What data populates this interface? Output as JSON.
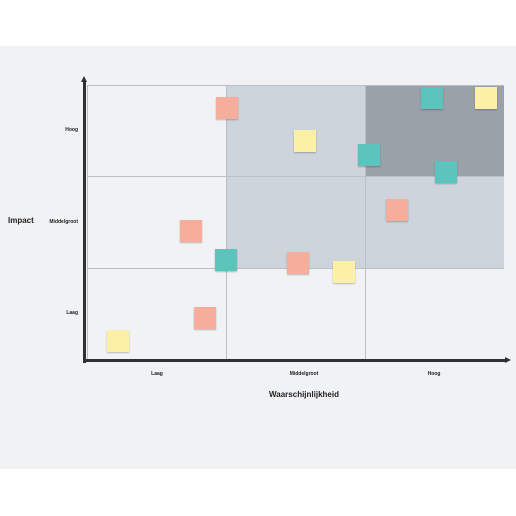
{
  "colors": {
    "board_background": "#f1f2f4",
    "zone_low": "#f1f2f4",
    "zone_medium": "#ced4dc",
    "zone_high": "#9ba1a9",
    "axis": "#2f3033",
    "note_salmon": "#f6ad9c",
    "note_teal": "#5cc4bd",
    "note_yellow": "#fcefa6"
  },
  "axes": {
    "x_title": "Waarschijnlijkheid",
    "y_title": "Impact",
    "x_ticks": [
      "Laag",
      "Middelgroot",
      "Hoog"
    ],
    "y_ticks": [
      "Hoog",
      "Middelgroot",
      "Laag"
    ]
  },
  "zones": [
    [
      "low",
      "medium",
      "high"
    ],
    [
      "low",
      "medium",
      "medium"
    ],
    [
      "low",
      "low",
      "low"
    ]
  ],
  "notes": [
    {
      "color": "salmon",
      "likelihood": 1.01,
      "impact": 2.75
    },
    {
      "color": "yellow",
      "likelihood": 1.57,
      "impact": 2.39
    },
    {
      "color": "teal",
      "likelihood": 2.03,
      "impact": 2.24
    },
    {
      "color": "teal",
      "likelihood": 2.48,
      "impact": 2.86
    },
    {
      "color": "yellow",
      "likelihood": 2.87,
      "impact": 2.86
    },
    {
      "color": "teal",
      "likelihood": 2.58,
      "impact": 2.05
    },
    {
      "color": "salmon",
      "likelihood": 0.75,
      "impact": 1.41
    },
    {
      "color": "teal",
      "likelihood": 1.0,
      "impact": 1.1
    },
    {
      "color": "salmon",
      "likelihood": 2.23,
      "impact": 1.64
    },
    {
      "color": "salmon",
      "likelihood": 1.52,
      "impact": 1.06
    },
    {
      "color": "yellow",
      "likelihood": 1.85,
      "impact": 0.97
    },
    {
      "color": "salmon",
      "likelihood": 0.85,
      "impact": 0.47
    },
    {
      "color": "yellow",
      "likelihood": 0.22,
      "impact": 0.22
    }
  ]
}
